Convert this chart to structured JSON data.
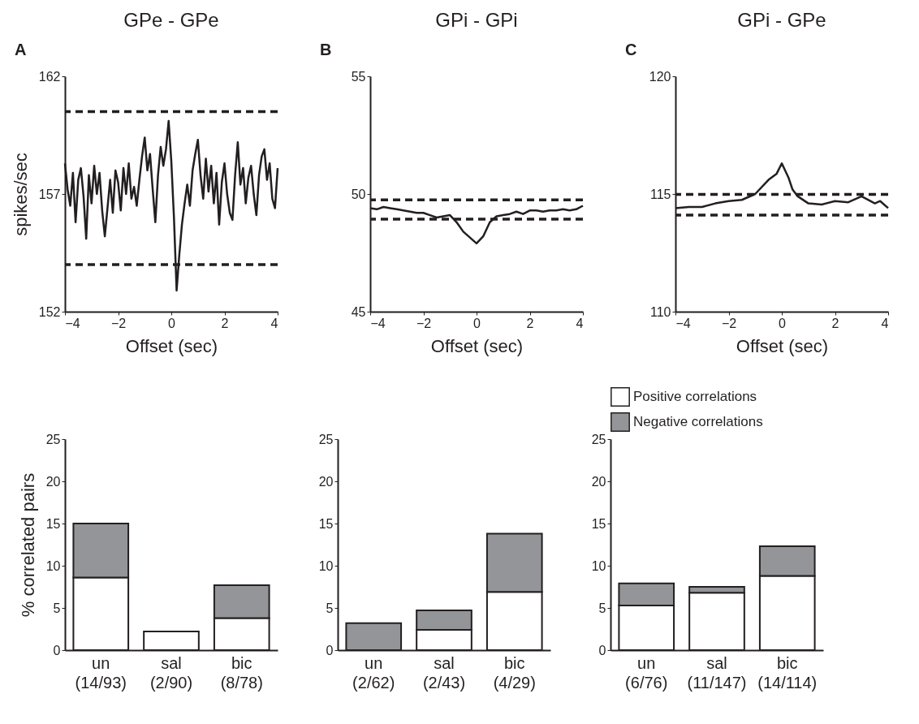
{
  "chart_data": [
    {
      "type": "line",
      "title": "GPe - GPe",
      "annotations": [
        "A"
      ],
      "xlabel": "Offset (sec)",
      "ylabel": "spikes/sec",
      "xlim": [
        -4,
        4
      ],
      "xticks": [
        -4,
        -2,
        0,
        2,
        4
      ],
      "ylim": [
        152,
        162
      ],
      "yticks": [
        152,
        157,
        162
      ],
      "grid": false,
      "x": [
        -4.0,
        -3.9,
        -3.8,
        -3.7,
        -3.6,
        -3.5,
        -3.4,
        -3.3,
        -3.2,
        -3.1,
        -3.0,
        -2.9,
        -2.8,
        -2.7,
        -2.6,
        -2.5,
        -2.4,
        -2.3,
        -2.2,
        -2.1,
        -2.0,
        -1.9,
        -1.8,
        -1.7,
        -1.6,
        -1.5,
        -1.4,
        -1.3,
        -1.2,
        -1.1,
        -1.0,
        -0.9,
        -0.8,
        -0.7,
        -0.6,
        -0.5,
        -0.4,
        -0.3,
        -0.2,
        -0.1,
        0.0,
        0.1,
        0.2,
        0.3,
        0.4,
        0.5,
        0.6,
        0.7,
        0.8,
        0.9,
        1.0,
        1.1,
        1.2,
        1.3,
        1.4,
        1.5,
        1.6,
        1.7,
        1.8,
        1.9,
        2.0,
        2.1,
        2.2,
        2.3,
        2.4,
        2.5,
        2.6,
        2.7,
        2.8,
        2.9,
        3.0,
        3.1,
        3.2,
        3.3,
        3.4,
        3.5,
        3.6,
        3.7,
        3.8,
        3.9,
        4.0
      ],
      "series": [
        {
          "color": "#231f20",
          "values": [
            158.3,
            157.2,
            156.5,
            157.9,
            155.8,
            157.6,
            158.1,
            156.9,
            155.1,
            157.8,
            156.6,
            158.2,
            157.0,
            157.9,
            156.3,
            155.2,
            156.4,
            157.6,
            156.2,
            158.0,
            157.5,
            156.3,
            158.1,
            157.0,
            158.3,
            156.8,
            157.3,
            156.5,
            157.6,
            158.6,
            159.4,
            158.0,
            158.7,
            157.2,
            155.8,
            157.8,
            159.0,
            158.2,
            158.9,
            160.1,
            158.4,
            156.0,
            152.9,
            154.4,
            155.7,
            156.6,
            157.4,
            156.5,
            158.0,
            158.7,
            159.3,
            157.8,
            156.8,
            158.5,
            157.1,
            158.2,
            156.6,
            157.9,
            155.7,
            157.5,
            158.3,
            157.0,
            156.2,
            155.9,
            157.8,
            159.2,
            157.4,
            158.1,
            156.6,
            157.7,
            158.2,
            157.0,
            156.1,
            157.8,
            158.6,
            158.9,
            157.6,
            158.3,
            156.8,
            156.4,
            158.1
          ]
        }
      ],
      "ref_lines": [
        {
          "axis": "y",
          "value": 160.5,
          "color": "#231f20",
          "line_style": "dashed"
        },
        {
          "axis": "y",
          "value": 154.0,
          "color": "#231f20",
          "line_style": "dashed"
        }
      ]
    },
    {
      "type": "line",
      "title": "GPi - GPi",
      "annotations": [
        "B"
      ],
      "xlabel": "Offset (sec)",
      "xlim": [
        -4,
        4
      ],
      "xticks": [
        -4,
        -2,
        0,
        2,
        4
      ],
      "ylim": [
        45,
        55
      ],
      "yticks": [
        45,
        50,
        55
      ],
      "grid": false,
      "x": [
        -4,
        -3.75,
        -3.5,
        -3.25,
        -3,
        -2.75,
        -2.5,
        -2.25,
        -2,
        -1.75,
        -1.5,
        -1.25,
        -1,
        -0.75,
        -0.5,
        -0.25,
        0,
        0.25,
        0.5,
        0.75,
        1,
        1.25,
        1.5,
        1.75,
        2,
        2.25,
        2.5,
        2.75,
        3,
        3.25,
        3.5,
        3.75,
        4
      ],
      "series": [
        {
          "color": "#231f20",
          "values": [
            49.4,
            49.35,
            49.45,
            49.4,
            49.35,
            49.3,
            49.25,
            49.2,
            49.2,
            49.1,
            49.0,
            49.05,
            49.1,
            48.8,
            48.4,
            48.15,
            47.9,
            48.2,
            48.8,
            49.05,
            49.1,
            49.15,
            49.25,
            49.15,
            49.3,
            49.3,
            49.25,
            49.3,
            49.3,
            49.35,
            49.3,
            49.35,
            49.5
          ]
        }
      ],
      "ref_lines": [
        {
          "axis": "y",
          "value": 49.75,
          "color": "#231f20",
          "line_style": "dashed"
        },
        {
          "axis": "y",
          "value": 48.93,
          "color": "#231f20",
          "line_style": "dashed"
        }
      ]
    },
    {
      "type": "line",
      "title": "GPi - GPe",
      "annotations": [
        "C"
      ],
      "xlabel": "Offset (sec)",
      "xlim": [
        -4,
        4
      ],
      "xticks": [
        -4,
        -2,
        0,
        2,
        4
      ],
      "ylim": [
        110,
        120
      ],
      "yticks": [
        110,
        115,
        120
      ],
      "grid": false,
      "x": [
        -4,
        -3.5,
        -3,
        -2.5,
        -2,
        -1.5,
        -1,
        -0.5,
        -0.2,
        0,
        0.25,
        0.4,
        0.6,
        1,
        1.5,
        2,
        2.5,
        3,
        3.5,
        3.7,
        4
      ],
      "series": [
        {
          "color": "#231f20",
          "values": [
            114.4,
            114.45,
            114.45,
            114.6,
            114.7,
            114.75,
            115.0,
            115.6,
            115.85,
            116.3,
            115.7,
            115.2,
            114.9,
            114.6,
            114.55,
            114.7,
            114.65,
            114.9,
            114.6,
            114.7,
            114.4
          ]
        }
      ],
      "ref_lines": [
        {
          "axis": "y",
          "value": 114.98,
          "color": "#231f20",
          "line_style": "dashed"
        },
        {
          "axis": "y",
          "value": 114.1,
          "color": "#231f20",
          "line_style": "dashed"
        }
      ]
    },
    {
      "type": "bar",
      "stacked": true,
      "ylabel": "% correlated pairs",
      "categories": [
        "un\n(14/93)",
        "sal\n(2/90)",
        "bic\n(8/78)"
      ],
      "ylim": [
        0,
        25
      ],
      "yticks": [
        0,
        5,
        10,
        15,
        20,
        25
      ],
      "grid": false,
      "legend": false,
      "series": [
        {
          "color": "#ffffff",
          "values": [
            8.6,
            2.2,
            3.8
          ]
        },
        {
          "color": "#939598",
          "values": [
            6.4,
            null,
            3.9
          ]
        }
      ]
    },
    {
      "type": "bar",
      "stacked": true,
      "categories": [
        "un\n(2/62)",
        "sal\n(2/43)",
        "bic\n(4/29)"
      ],
      "ylim": [
        0,
        25
      ],
      "yticks": [
        0,
        5,
        10,
        15,
        20,
        25
      ],
      "grid": false,
      "legend": false,
      "series": [
        {
          "color": "#ffffff",
          "values": [
            null,
            2.4,
            6.9
          ]
        },
        {
          "color": "#939598",
          "values": [
            3.2,
            2.3,
            6.9
          ]
        }
      ]
    },
    {
      "type": "bar",
      "stacked": true,
      "categories": [
        "un\n(6/76)",
        "sal\n(11/147)",
        "bic\n(14/114)"
      ],
      "ylim": [
        0,
        25
      ],
      "yticks": [
        0,
        5,
        10,
        15,
        20,
        25
      ],
      "grid": false,
      "legend": "top",
      "series": [
        {
          "name": "Positive correlations",
          "color": "#ffffff",
          "values": [
            5.3,
            6.8,
            8.8
          ]
        },
        {
          "name": "Negative correlations",
          "color": "#939598",
          "values": [
            2.6,
            0.7,
            3.5
          ]
        }
      ]
    }
  ]
}
